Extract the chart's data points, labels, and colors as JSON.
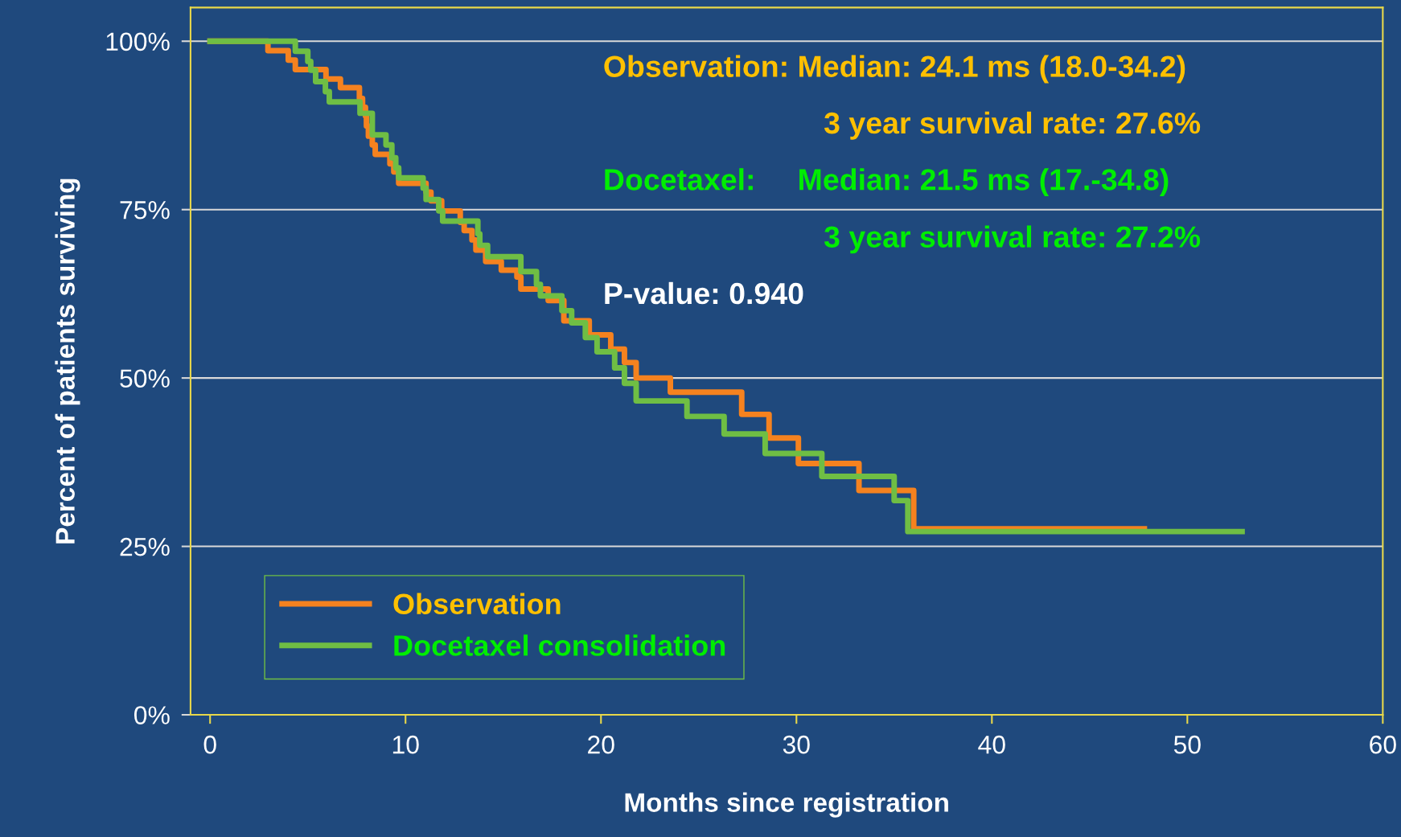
{
  "chart_data": {
    "type": "step",
    "xlabel": "Months since registration",
    "ylabel": "Percent of patients surviving",
    "series": [
      {
        "name": "Observation",
        "color": "#f5821f",
        "x": [
          0,
          2.96,
          4.0,
          4.36,
          5.93,
          6.67,
          7.64,
          7.8,
          7.95,
          8.0,
          8.1,
          8.3,
          8.45,
          9.2,
          9.4,
          9.65,
          11.05,
          11.3,
          11.85,
          12.8,
          13.0,
          13.4,
          13.6,
          14.1,
          14.9,
          15.7,
          15.9,
          17.3,
          18.1,
          19.4,
          20.5,
          21.2,
          21.8,
          23.55,
          27.2,
          28.6,
          30.1,
          33.2,
          36.0,
          47.8
        ],
        "values": [
          100,
          98.6,
          97.2,
          95.8,
          94.4,
          93.1,
          91.5,
          90.2,
          88.9,
          87.4,
          85.9,
          84.6,
          83.2,
          81.8,
          80.6,
          78.9,
          77.6,
          76.3,
          74.8,
          73.1,
          71.9,
          70.5,
          69.0,
          67.3,
          66.0,
          65.0,
          63.2,
          61.5,
          58.5,
          56.4,
          54.3,
          52.3,
          50.0,
          47.9,
          44.6,
          41.1,
          37.3,
          33.3,
          27.6,
          27.6
        ]
      },
      {
        "name": "Docetaxel consolidation",
        "color": "#6fbe44",
        "x": [
          0,
          4.36,
          5.0,
          5.15,
          5.4,
          5.9,
          6.1,
          7.67,
          8.3,
          9.0,
          9.3,
          9.5,
          9.65,
          10.9,
          11.05,
          11.7,
          11.9,
          13.7,
          13.8,
          14.2,
          15.9,
          16.7,
          16.9,
          18.0,
          18.5,
          19.2,
          19.8,
          20.7,
          21.2,
          21.8,
          24.4,
          26.3,
          28.4,
          31.3,
          35.0,
          35.7,
          52.8
        ],
        "values": [
          100,
          98.5,
          97.0,
          95.7,
          94.0,
          92.5,
          91.0,
          89.3,
          86.1,
          84.6,
          82.7,
          81.2,
          79.7,
          78.2,
          76.5,
          74.8,
          73.3,
          71.4,
          69.7,
          68.0,
          65.8,
          63.9,
          62.2,
          60.0,
          58.2,
          56.0,
          53.9,
          51.5,
          49.2,
          46.6,
          44.3,
          41.7,
          38.8,
          35.4,
          31.8,
          27.2,
          27.2
        ]
      }
    ],
    "xlim": [
      -1,
      60
    ],
    "xticks": [
      0,
      10,
      20,
      30,
      40,
      50,
      60
    ],
    "ylim": [
      0,
      105
    ],
    "yticks": [
      {
        "value": 0,
        "label": "0%"
      },
      {
        "value": 25,
        "label": "25%"
      },
      {
        "value": 50,
        "label": "50%"
      },
      {
        "value": 75,
        "label": "75%"
      },
      {
        "value": 100,
        "label": "100%"
      }
    ],
    "grid": "y",
    "legend": "bottom left",
    "annotations": [
      "Observation: Median: 24.1 ms (18.0-34.2)",
      "3 year survival rate: 27.6%",
      "Docetaxel:     Median: 21.5 ms (17.-34.8)",
      "3 year survival rate: 27.2%",
      "P-value: 0.940"
    ]
  }
}
